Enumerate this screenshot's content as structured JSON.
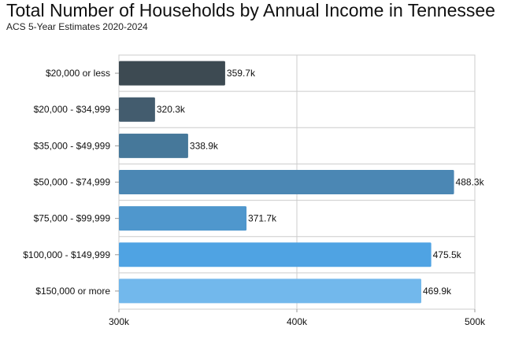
{
  "chart_data": {
    "type": "bar",
    "orientation": "horizontal",
    "title": "Total Number of Households by Annual Income in Tennessee",
    "subtitle": "ACS 5-Year Estimates 2020-2024",
    "categories": [
      "$20,000 or less",
      "$20,000 - $34,999",
      "$35,000 - $49,999",
      "$50,000 - $74,999",
      "$75,000 - $99,999",
      "$100,000 - $149,999",
      "$150,000 or more"
    ],
    "values": [
      359.7,
      320.3,
      338.9,
      488.3,
      371.7,
      475.5,
      469.9
    ],
    "value_labels": [
      "359.7k",
      "320.3k",
      "338.9k",
      "488.3k",
      "371.7k",
      "475.5k",
      "469.9k"
    ],
    "value_unit": "thousand households",
    "xlim": [
      300,
      500
    ],
    "x_ticks": [
      300,
      400,
      500
    ],
    "x_tick_labels": [
      "300k",
      "400k",
      "500k"
    ],
    "xlabel": "",
    "ylabel": "",
    "grid": true,
    "legend": "none",
    "bar_colors": [
      "#3d4a52",
      "#435c6e",
      "#46789a",
      "#4b87b4",
      "#4f97cd",
      "#4fa3e3",
      "#72b8ec"
    ]
  }
}
